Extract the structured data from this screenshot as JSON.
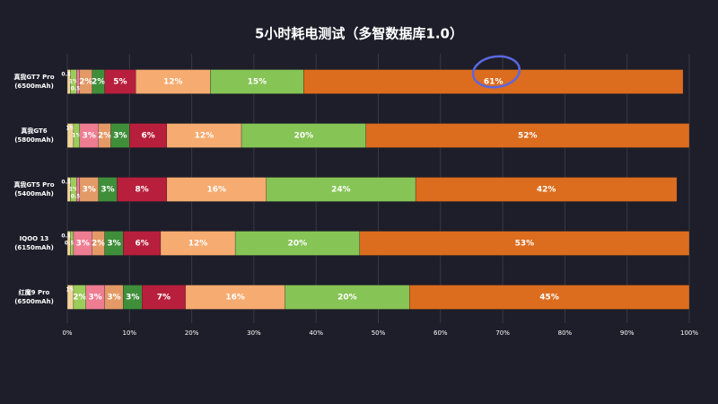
{
  "chart_data": {
    "type": "stacked-barh",
    "title": "5小时耗电测试（多智数据库1.0）",
    "categories": [
      [
        "真我GT7 Pro",
        "(6500mAh)"
      ],
      [
        "真我GT6",
        "(5800mAh)"
      ],
      [
        "真我GT5 Pro",
        "(5400mAh)"
      ],
      [
        "IQOO 13",
        "(6150mAh)"
      ],
      [
        "红魔9 Pro",
        "(6500mAh)"
      ]
    ],
    "series": [
      {
        "color": "#f2d49a",
        "values": [
          0.5,
          1,
          0.5,
          0.5,
          1
        ],
        "value_labels": [
          "0.5%",
          "1%",
          "0.5%",
          "0.5%",
          "1%"
        ]
      },
      {
        "color": "#9ccc5a",
        "values": [
          1,
          1,
          1,
          0.5,
          2
        ],
        "value_labels": [
          "1%",
          "1%",
          "1%",
          "0.5%",
          "2%"
        ]
      },
      {
        "color": "#ee7d92",
        "values": [
          0.5,
          3,
          0.5,
          3,
          3
        ],
        "value_labels": [
          "0.5%",
          "3%",
          "0.5%",
          "3%",
          "3%"
        ]
      },
      {
        "color": "#e49a66",
        "values": [
          2,
          2,
          3,
          2,
          3
        ],
        "value_labels": [
          "2%",
          "2%",
          "3%",
          "2%",
          "3%"
        ]
      },
      {
        "color": "#3f8f3a",
        "values": [
          2,
          3,
          3,
          3,
          3
        ],
        "value_labels": [
          "2%",
          "3%",
          "3%",
          "3%",
          "3%"
        ]
      },
      {
        "color": "#b81f3c",
        "values": [
          5,
          6,
          8,
          6,
          7
        ],
        "value_labels": [
          "5%",
          "6%",
          "8%",
          "6%",
          "7%"
        ]
      },
      {
        "color": "#f6ab70",
        "values": [
          12,
          12,
          16,
          12,
          16
        ],
        "value_labels": [
          "12%",
          "12%",
          "16%",
          "12%",
          "16%"
        ]
      },
      {
        "color": "#86c455",
        "values": [
          15,
          20,
          24,
          20,
          20
        ],
        "value_labels": [
          "15%",
          "20%",
          "24%",
          "20%",
          "20%"
        ]
      },
      {
        "color": "#dc6c1e",
        "values": [
          61,
          52,
          42,
          53,
          45
        ],
        "value_labels": [
          "61%",
          "52%",
          "42%",
          "53%",
          "45%"
        ]
      }
    ],
    "xlim": [
      0,
      100
    ],
    "xticks": [
      {
        "value": 0,
        "label": "0%"
      },
      {
        "value": 10,
        "label": "10%"
      },
      {
        "value": 20,
        "label": "20%"
      },
      {
        "value": 30,
        "label": "30%"
      },
      {
        "value": 40,
        "label": "40%"
      },
      {
        "value": 50,
        "label": "50%"
      },
      {
        "value": 60,
        "label": "60%"
      },
      {
        "value": 70,
        "label": "70%"
      },
      {
        "value": 80,
        "label": "80%"
      },
      {
        "value": 90,
        "label": "90%"
      },
      {
        "value": 100,
        "label": "100%"
      }
    ],
    "grid": true
  }
}
